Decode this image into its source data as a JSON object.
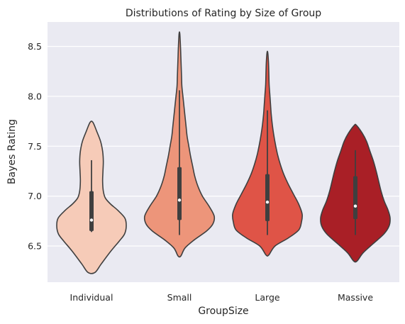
{
  "chart_data": {
    "type": "violin",
    "title": "Distributions of Rating by Size of Group",
    "xlabel": "GroupSize",
    "ylabel": "Bayes Rating",
    "ylim": [
      6.12,
      8.75
    ],
    "yticks": [
      "6.5",
      "7.0",
      "7.5",
      "8.0",
      "8.5"
    ],
    "grid": true,
    "categories": [
      "Individual",
      "Small",
      "Large",
      "Massive"
    ],
    "colors": [
      "#f6cbb8",
      "#ed957a",
      "#df5447",
      "#a91f26"
    ],
    "violins": [
      {
        "category": "Individual",
        "min_y": 6.235,
        "max_y": 7.74,
        "profile": [
          [
            6.235,
            0.1
          ],
          [
            6.32,
            0.28
          ],
          [
            6.45,
            0.56
          ],
          [
            6.55,
            0.8
          ],
          [
            6.62,
            0.95
          ],
          [
            6.7,
            1.0
          ],
          [
            6.78,
            0.96
          ],
          [
            6.86,
            0.75
          ],
          [
            6.92,
            0.55
          ],
          [
            6.98,
            0.4
          ],
          [
            7.05,
            0.34
          ],
          [
            7.15,
            0.32
          ],
          [
            7.25,
            0.33
          ],
          [
            7.35,
            0.34
          ],
          [
            7.45,
            0.32
          ],
          [
            7.55,
            0.26
          ],
          [
            7.65,
            0.15
          ],
          [
            7.74,
            0.04
          ]
        ],
        "whisker": [
          6.64,
          7.36
        ],
        "iqr": [
          6.65,
          7.05
        ],
        "median": 6.76
      },
      {
        "category": "Small",
        "min_y": 6.4,
        "max_y": 8.63,
        "profile": [
          [
            6.4,
            0.04
          ],
          [
            6.48,
            0.16
          ],
          [
            6.56,
            0.42
          ],
          [
            6.65,
            0.78
          ],
          [
            6.72,
            0.96
          ],
          [
            6.8,
            1.0
          ],
          [
            6.9,
            0.85
          ],
          [
            7.0,
            0.66
          ],
          [
            7.1,
            0.53
          ],
          [
            7.2,
            0.44
          ],
          [
            7.3,
            0.38
          ],
          [
            7.4,
            0.32
          ],
          [
            7.5,
            0.27
          ],
          [
            7.6,
            0.22
          ],
          [
            7.7,
            0.19
          ],
          [
            7.8,
            0.16
          ],
          [
            7.9,
            0.13
          ],
          [
            8.0,
            0.1
          ],
          [
            8.1,
            0.07
          ],
          [
            8.2,
            0.06
          ],
          [
            8.3,
            0.05
          ],
          [
            8.4,
            0.04
          ],
          [
            8.5,
            0.03
          ],
          [
            8.63,
            0.01
          ]
        ],
        "whisker": [
          6.61,
          8.06
        ],
        "iqr": [
          6.76,
          7.29
        ],
        "median": 6.96
      },
      {
        "category": "Large",
        "min_y": 6.41,
        "max_y": 8.44,
        "profile": [
          [
            6.41,
            0.04
          ],
          [
            6.5,
            0.22
          ],
          [
            6.58,
            0.6
          ],
          [
            6.66,
            0.9
          ],
          [
            6.74,
            0.98
          ],
          [
            6.82,
            1.0
          ],
          [
            6.92,
            0.9
          ],
          [
            7.02,
            0.75
          ],
          [
            7.12,
            0.6
          ],
          [
            7.22,
            0.47
          ],
          [
            7.32,
            0.37
          ],
          [
            7.42,
            0.29
          ],
          [
            7.52,
            0.23
          ],
          [
            7.62,
            0.18
          ],
          [
            7.72,
            0.14
          ],
          [
            7.82,
            0.11
          ],
          [
            7.92,
            0.09
          ],
          [
            8.02,
            0.07
          ],
          [
            8.12,
            0.05
          ],
          [
            8.25,
            0.04
          ],
          [
            8.35,
            0.03
          ],
          [
            8.44,
            0.01
          ]
        ],
        "whisker": [
          6.61,
          7.86
        ],
        "iqr": [
          6.75,
          7.22
        ],
        "median": 6.94
      },
      {
        "category": "Massive",
        "min_y": 6.35,
        "max_y": 7.71,
        "profile": [
          [
            6.35,
            0.05
          ],
          [
            6.43,
            0.22
          ],
          [
            6.52,
            0.5
          ],
          [
            6.62,
            0.82
          ],
          [
            6.7,
            0.97
          ],
          [
            6.78,
            1.0
          ],
          [
            6.86,
            0.94
          ],
          [
            6.95,
            0.83
          ],
          [
            7.05,
            0.74
          ],
          [
            7.15,
            0.67
          ],
          [
            7.25,
            0.6
          ],
          [
            7.35,
            0.52
          ],
          [
            7.45,
            0.42
          ],
          [
            7.55,
            0.32
          ],
          [
            7.63,
            0.2
          ],
          [
            7.71,
            0.03
          ]
        ],
        "whisker": [
          6.61,
          7.46
        ],
        "iqr": [
          6.77,
          7.2
        ],
        "median": 6.9
      }
    ]
  }
}
